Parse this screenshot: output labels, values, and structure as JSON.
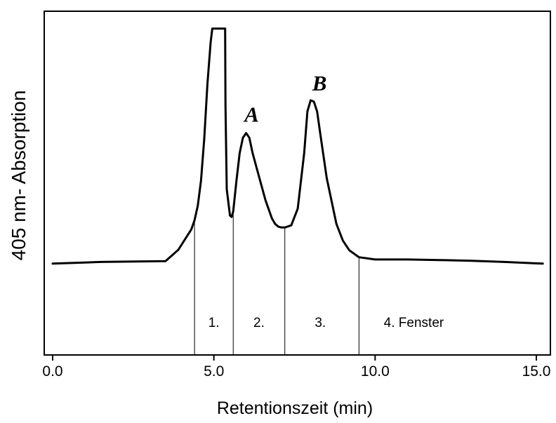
{
  "chart_data": {
    "type": "line",
    "title": "",
    "xlabel": "Retentionszeit (min)",
    "ylabel": "405 nm- Absorption",
    "xlim": [
      -0.2,
      15.5
    ],
    "ylim": [
      0,
      100
    ],
    "grid": false,
    "x_ticks": [
      {
        "value": 0.0,
        "label": "0.0"
      },
      {
        "value": 5.0,
        "label": "5.0"
      },
      {
        "value": 10.0,
        "label": "10.0"
      },
      {
        "value": 15.0,
        "label": "15.0"
      }
    ],
    "series": [
      {
        "x": [
          0.0,
          1.5,
          3.5,
          3.9,
          4.3,
          4.4,
          4.5,
          4.6,
          4.7,
          4.8,
          4.9,
          4.95,
          5.35,
          5.36,
          5.4,
          5.5,
          5.55,
          5.6,
          5.7,
          5.8,
          5.9,
          6.0,
          6.1,
          6.2,
          6.4,
          6.6,
          6.8,
          6.9,
          7.0,
          7.1,
          7.2,
          7.4,
          7.6,
          7.8,
          7.9,
          8.0,
          8.1,
          8.2,
          8.3,
          8.5,
          8.8,
          9.0,
          9.2,
          9.5,
          10.0,
          11.0,
          12.0,
          13.0,
          14.0,
          15.2
        ],
        "y": [
          15.2,
          15.8,
          16.1,
          20.2,
          27.5,
          30.8,
          36.0,
          45.0,
          60.0,
          80.0,
          95.0,
          99.8,
          99.8,
          72.0,
          42.0,
          32.5,
          32.0,
          34.0,
          45.0,
          55.0,
          60.5,
          62.2,
          60.5,
          55.0,
          46.5,
          38.0,
          31.5,
          29.5,
          28.5,
          28.2,
          28.2,
          29.0,
          35.0,
          55.0,
          70.0,
          74.0,
          73.5,
          70.0,
          62.0,
          46.0,
          29.5,
          23.5,
          20.0,
          17.5,
          16.7,
          16.7,
          16.5,
          16.2,
          15.8,
          15.2
        ]
      }
    ],
    "window_boundaries": [
      4.4,
      5.6,
      7.2,
      9.5
    ],
    "window_labels": [
      {
        "x": 5.0,
        "label": "1."
      },
      {
        "x": 6.4,
        "label": "2."
      },
      {
        "x": 8.3,
        "label": "3."
      },
      {
        "x": 11.2,
        "label": "4. Fenster"
      }
    ],
    "annotations": [
      {
        "x": 6.0,
        "label": "A"
      },
      {
        "x": 8.1,
        "label": "B"
      }
    ]
  }
}
